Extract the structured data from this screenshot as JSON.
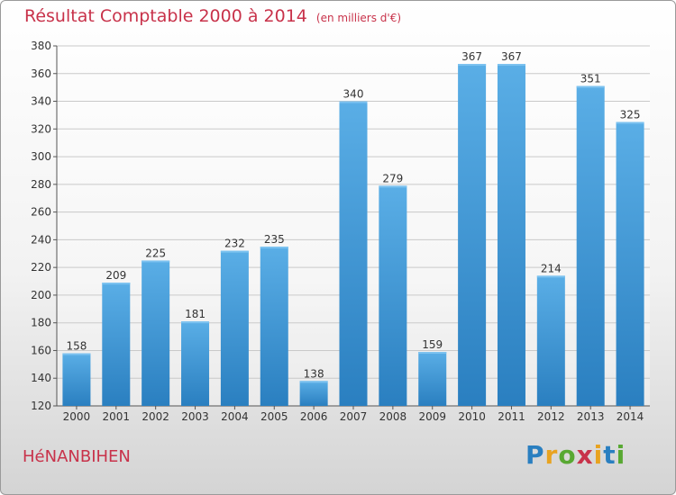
{
  "header": {
    "title": "Résultat Comptable 2000 à 2014",
    "unit": "(en milliers d'€)"
  },
  "footer": {
    "commune": "HéNANBIHEN",
    "logo": "Proxiti"
  },
  "colors": {
    "title": "#c8324a",
    "bar_top": "#5aaee6",
    "bar_bottom": "#2a7fc0",
    "logo_letters": [
      "#2a7fc0",
      "#e8a320",
      "#58a832",
      "#c8324a",
      "#e8a320",
      "#2a7fc0",
      "#58a832"
    ]
  },
  "chart_data": {
    "type": "bar",
    "categories": [
      "2000",
      "2001",
      "2002",
      "2003",
      "2004",
      "2005",
      "2006",
      "2007",
      "2008",
      "2009",
      "2010",
      "2011",
      "2012",
      "2013",
      "2014"
    ],
    "values": [
      158,
      209,
      225,
      181,
      232,
      235,
      138,
      340,
      279,
      159,
      367,
      367,
      214,
      351,
      325
    ],
    "ylim": [
      120,
      380
    ],
    "yticks": [
      120,
      140,
      160,
      180,
      200,
      220,
      240,
      260,
      280,
      300,
      320,
      340,
      360,
      380
    ],
    "grid": true,
    "legend": "none"
  }
}
